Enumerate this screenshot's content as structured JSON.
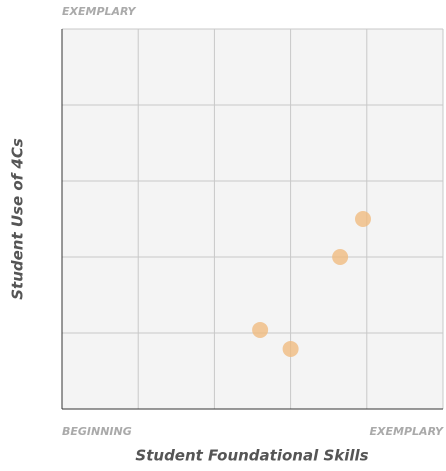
{
  "chart_data": {
    "type": "scatter",
    "x_label": "Student Foundational Skills",
    "y_label": "Student Use of 4Cs",
    "x": [
      3.95,
      3.65,
      2.6,
      3.0
    ],
    "values": [
      2.5,
      2.0,
      1.04,
      0.79
    ],
    "color": "#f0b87a",
    "xlim": [
      0,
      5
    ],
    "ylim": [
      0,
      5
    ],
    "xticks": [
      {
        "value": 0,
        "label": "BEGINNING"
      },
      {
        "value": 5,
        "label": "EXEMPLARY"
      }
    ],
    "yticks": [
      {
        "value": 5,
        "label": "EXEMPLARY"
      }
    ],
    "xgrid": [
      1,
      2,
      3,
      4,
      5
    ],
    "ygrid": [
      1,
      2,
      3,
      4,
      5
    ],
    "grid": true
  }
}
